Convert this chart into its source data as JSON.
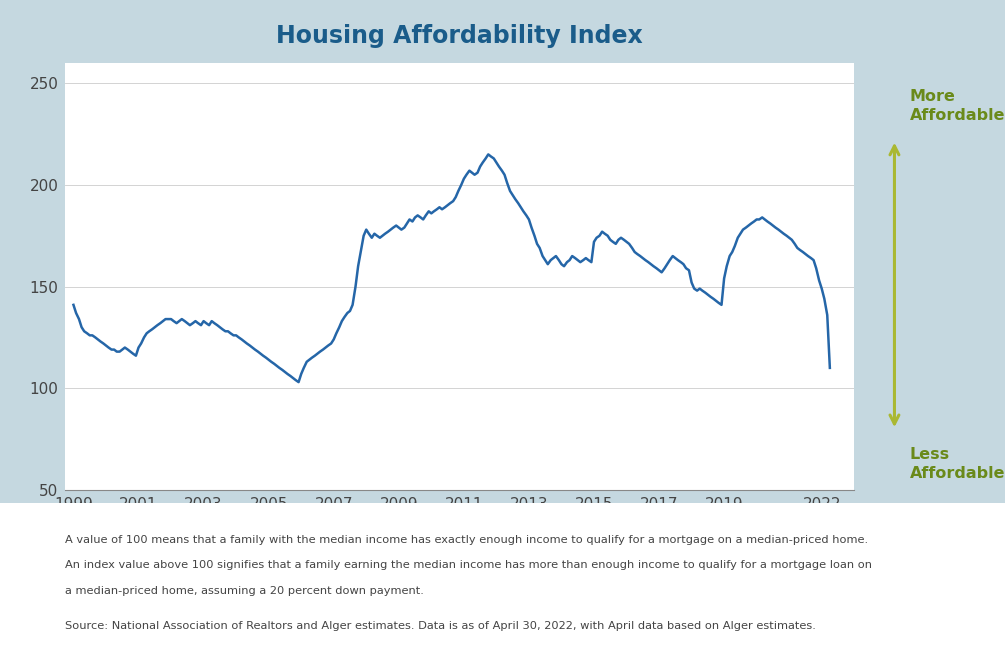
{
  "title": "Housing Affordability Index",
  "title_color": "#1a5c8a",
  "title_fontsize": 17,
  "line_color": "#2566a8",
  "bg_color": "#c5d8e0",
  "plot_bg_color": "#ffffff",
  "footnote_bg_color": "#ffffff",
  "ylim": [
    50,
    260
  ],
  "yticks": [
    50,
    100,
    150,
    200,
    250
  ],
  "xlim_left": 1998.75,
  "xlim_right": 2023.0,
  "arrow_color": "#aab832",
  "more_affordable_text": "More\nAffordable",
  "less_affordable_text": "Less\nAffordable",
  "arrow_label_color": "#6a8a1a",
  "footnote1": "A value of 100 means that a family with the median income has exactly enough income to qualify for a mortgage on a median-priced home.",
  "footnote2": "An index value above 100 signifies that a family earning the median income has more than enough income to qualify for a mortgage loan on",
  "footnote3": "a median-priced home, assuming a 20 percent down payment.",
  "source": "Source: National Association of Realtors and Alger estimates. Data is as of April 30, 2022, with April data based on Alger estimates.",
  "xtick_years": [
    1999,
    2001,
    2003,
    2005,
    2007,
    2009,
    2011,
    2013,
    2015,
    2017,
    2019,
    2022
  ],
  "x_values": [
    1999.0,
    1999.08,
    1999.17,
    1999.25,
    1999.33,
    1999.42,
    1999.5,
    1999.58,
    1999.67,
    1999.75,
    1999.83,
    1999.92,
    2000.0,
    2000.08,
    2000.17,
    2000.25,
    2000.33,
    2000.42,
    2000.5,
    2000.58,
    2000.67,
    2000.75,
    2000.83,
    2000.92,
    2001.0,
    2001.08,
    2001.17,
    2001.25,
    2001.33,
    2001.42,
    2001.5,
    2001.58,
    2001.67,
    2001.75,
    2001.83,
    2001.92,
    2002.0,
    2002.08,
    2002.17,
    2002.25,
    2002.33,
    2002.42,
    2002.5,
    2002.58,
    2002.67,
    2002.75,
    2002.83,
    2002.92,
    2003.0,
    2003.08,
    2003.17,
    2003.25,
    2003.33,
    2003.42,
    2003.5,
    2003.58,
    2003.67,
    2003.75,
    2003.83,
    2003.92,
    2004.0,
    2004.08,
    2004.17,
    2004.25,
    2004.33,
    2004.42,
    2004.5,
    2004.58,
    2004.67,
    2004.75,
    2004.83,
    2004.92,
    2005.0,
    2005.08,
    2005.17,
    2005.25,
    2005.33,
    2005.42,
    2005.5,
    2005.58,
    2005.67,
    2005.75,
    2005.83,
    2005.92,
    2006.0,
    2006.08,
    2006.17,
    2006.25,
    2006.33,
    2006.42,
    2006.5,
    2006.58,
    2006.67,
    2006.75,
    2006.83,
    2006.92,
    2007.0,
    2007.08,
    2007.17,
    2007.25,
    2007.33,
    2007.42,
    2007.5,
    2007.58,
    2007.67,
    2007.75,
    2007.83,
    2007.92,
    2008.0,
    2008.08,
    2008.17,
    2008.25,
    2008.33,
    2008.42,
    2008.5,
    2008.58,
    2008.67,
    2008.75,
    2008.83,
    2008.92,
    2009.0,
    2009.08,
    2009.17,
    2009.25,
    2009.33,
    2009.42,
    2009.5,
    2009.58,
    2009.67,
    2009.75,
    2009.83,
    2009.92,
    2010.0,
    2010.08,
    2010.17,
    2010.25,
    2010.33,
    2010.42,
    2010.5,
    2010.58,
    2010.67,
    2010.75,
    2010.83,
    2010.92,
    2011.0,
    2011.08,
    2011.17,
    2011.25,
    2011.33,
    2011.42,
    2011.5,
    2011.58,
    2011.67,
    2011.75,
    2011.83,
    2011.92,
    2012.0,
    2012.08,
    2012.17,
    2012.25,
    2012.33,
    2012.42,
    2012.5,
    2012.58,
    2012.67,
    2012.75,
    2012.83,
    2012.92,
    2013.0,
    2013.08,
    2013.17,
    2013.25,
    2013.33,
    2013.42,
    2013.5,
    2013.58,
    2013.67,
    2013.75,
    2013.83,
    2013.92,
    2014.0,
    2014.08,
    2014.17,
    2014.25,
    2014.33,
    2014.42,
    2014.5,
    2014.58,
    2014.67,
    2014.75,
    2014.83,
    2014.92,
    2015.0,
    2015.08,
    2015.17,
    2015.25,
    2015.33,
    2015.42,
    2015.5,
    2015.58,
    2015.67,
    2015.75,
    2015.83,
    2015.92,
    2016.0,
    2016.08,
    2016.17,
    2016.25,
    2016.33,
    2016.42,
    2016.5,
    2016.58,
    2016.67,
    2016.75,
    2016.83,
    2016.92,
    2017.0,
    2017.08,
    2017.17,
    2017.25,
    2017.33,
    2017.42,
    2017.5,
    2017.58,
    2017.67,
    2017.75,
    2017.83,
    2017.92,
    2018.0,
    2018.08,
    2018.17,
    2018.25,
    2018.33,
    2018.42,
    2018.5,
    2018.58,
    2018.67,
    2018.75,
    2018.83,
    2018.92,
    2019.0,
    2019.08,
    2019.17,
    2019.25,
    2019.33,
    2019.42,
    2019.5,
    2019.58,
    2019.67,
    2019.75,
    2019.83,
    2019.92,
    2020.0,
    2020.08,
    2020.17,
    2020.25,
    2020.33,
    2020.42,
    2020.5,
    2020.58,
    2020.67,
    2020.75,
    2020.83,
    2020.92,
    2021.0,
    2021.08,
    2021.17,
    2021.25,
    2021.33,
    2021.42,
    2021.5,
    2021.58,
    2021.67,
    2021.75,
    2021.83,
    2021.92,
    2022.0,
    2022.08,
    2022.17,
    2022.25
  ],
  "y_values": [
    141,
    137,
    134,
    130,
    128,
    127,
    126,
    126,
    125,
    124,
    123,
    122,
    121,
    120,
    119,
    119,
    118,
    118,
    119,
    120,
    119,
    118,
    117,
    116,
    120,
    122,
    125,
    127,
    128,
    129,
    130,
    131,
    132,
    133,
    134,
    134,
    134,
    133,
    132,
    133,
    134,
    133,
    132,
    131,
    132,
    133,
    132,
    131,
    133,
    132,
    131,
    133,
    132,
    131,
    130,
    129,
    128,
    128,
    127,
    126,
    126,
    125,
    124,
    123,
    122,
    121,
    120,
    119,
    118,
    117,
    116,
    115,
    114,
    113,
    112,
    111,
    110,
    109,
    108,
    107,
    106,
    105,
    104,
    103,
    107,
    110,
    113,
    114,
    115,
    116,
    117,
    118,
    119,
    120,
    121,
    122,
    124,
    127,
    130,
    133,
    135,
    137,
    138,
    141,
    150,
    160,
    167,
    175,
    178,
    176,
    174,
    176,
    175,
    174,
    175,
    176,
    177,
    178,
    179,
    180,
    179,
    178,
    179,
    181,
    183,
    182,
    184,
    185,
    184,
    183,
    185,
    187,
    186,
    187,
    188,
    189,
    188,
    189,
    190,
    191,
    192,
    194,
    197,
    200,
    203,
    205,
    207,
    206,
    205,
    206,
    209,
    211,
    213,
    215,
    214,
    213,
    211,
    209,
    207,
    205,
    201,
    197,
    195,
    193,
    191,
    189,
    187,
    185,
    183,
    179,
    175,
    171,
    169,
    165,
    163,
    161,
    163,
    164,
    165,
    163,
    161,
    160,
    162,
    163,
    165,
    164,
    163,
    162,
    163,
    164,
    163,
    162,
    172,
    174,
    175,
    177,
    176,
    175,
    173,
    172,
    171,
    173,
    174,
    173,
    172,
    171,
    169,
    167,
    166,
    165,
    164,
    163,
    162,
    161,
    160,
    159,
    158,
    157,
    159,
    161,
    163,
    165,
    164,
    163,
    162,
    161,
    159,
    158,
    152,
    149,
    148,
    149,
    148,
    147,
    146,
    145,
    144,
    143,
    142,
    141,
    154,
    160,
    165,
    167,
    170,
    174,
    176,
    178,
    179,
    180,
    181,
    182,
    183,
    183,
    184,
    183,
    182,
    181,
    180,
    179,
    178,
    177,
    176,
    175,
    174,
    173,
    171,
    169,
    168,
    167,
    166,
    165,
    164,
    163,
    159,
    153,
    149,
    144,
    136,
    110
  ]
}
